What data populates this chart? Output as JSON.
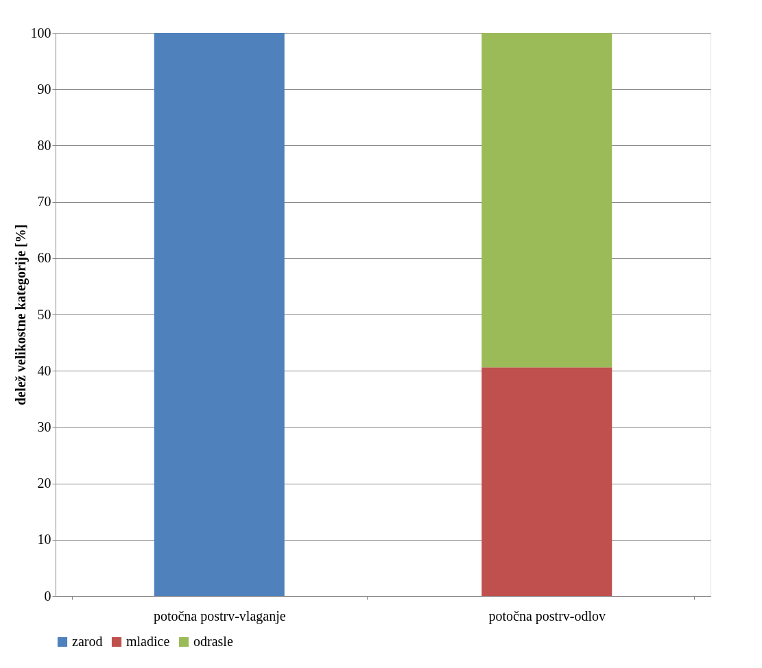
{
  "chart_data": {
    "type": "bar",
    "stacked": true,
    "ylabel": "delež velikostne kategorije [%]",
    "categories": [
      "potočna postrv-vlaganje",
      "potočna postrv-odlov"
    ],
    "series": [
      {
        "name": "zarod",
        "color": "#4f81bd",
        "values": [
          100,
          null
        ]
      },
      {
        "name": "mladice",
        "color": "#c0504d",
        "values": [
          null,
          40.6
        ]
      },
      {
        "name": "odrasle",
        "color": "#9bbb59",
        "values": [
          null,
          59.4
        ]
      }
    ],
    "ylim": [
      0,
      100
    ],
    "yticks": [
      0,
      10,
      20,
      30,
      40,
      50,
      60,
      70,
      80,
      90,
      100
    ],
    "grid": "y",
    "legend": "bottom"
  }
}
